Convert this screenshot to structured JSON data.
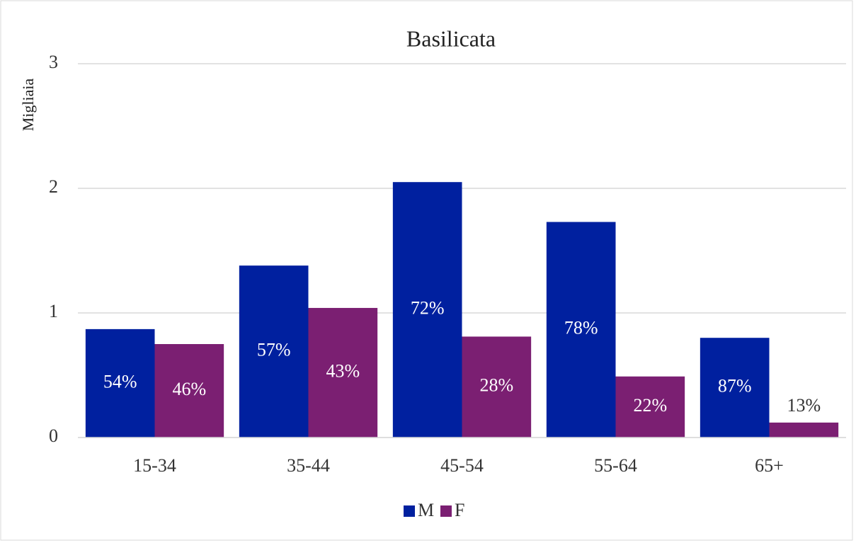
{
  "chart_data": {
    "type": "bar",
    "title": "Basilicata",
    "y_label": "Migliaia",
    "categories": [
      "15-34",
      "35-44",
      "45-54",
      "55-64",
      "65+"
    ],
    "series": [
      {
        "name": "M",
        "color": "#00209f",
        "values": [
          0.87,
          1.38,
          2.05,
          1.73,
          0.8
        ],
        "share_labels": [
          "54%",
          "57%",
          "72%",
          "78%",
          "87%"
        ]
      },
      {
        "name": "F",
        "color": "#7b1f72",
        "values": [
          0.75,
          1.04,
          0.81,
          0.49,
          0.12
        ],
        "share_labels": [
          "46%",
          "43%",
          "28%",
          "22%",
          "13%"
        ]
      }
    ],
    "ylim": [
      0,
      3
    ],
    "yticks": [
      0,
      1,
      2,
      3
    ],
    "grid": true,
    "legend": "bottom"
  }
}
